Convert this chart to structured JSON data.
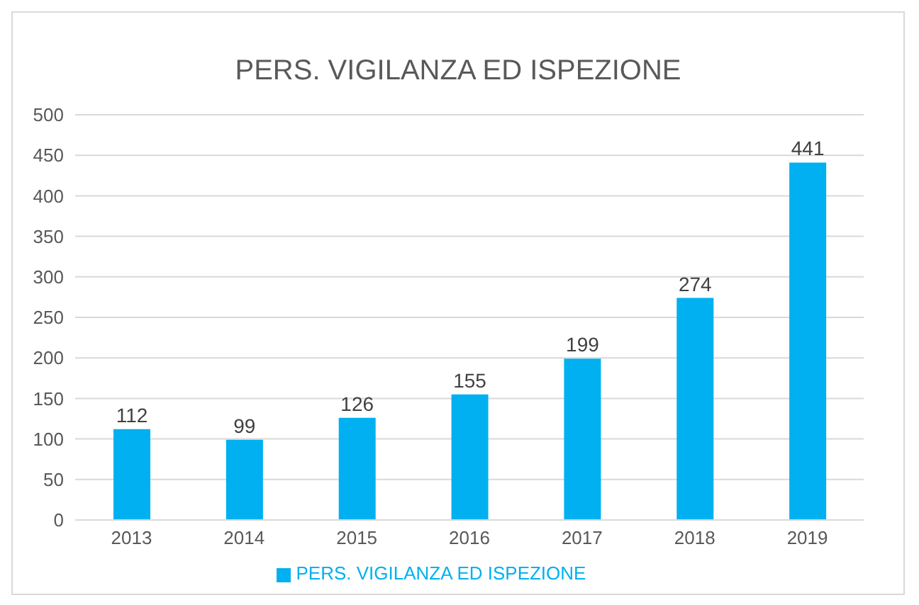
{
  "chart_data": {
    "type": "bar",
    "title": "PERS. VIGILANZA ED ISPEZIONE",
    "categories": [
      "2013",
      "2014",
      "2015",
      "2016",
      "2017",
      "2018",
      "2019"
    ],
    "series": [
      {
        "name": "PERS. VIGILANZA ED ISPEZIONE",
        "color": "#00b0f0",
        "values": [
          112,
          99,
          126,
          155,
          199,
          274,
          441
        ]
      }
    ],
    "ylim": [
      0,
      500
    ],
    "yticks": [
      0,
      50,
      100,
      150,
      200,
      250,
      300,
      350,
      400,
      450,
      500
    ],
    "grid": "y",
    "legend": "bottom",
    "data_labels": true
  }
}
